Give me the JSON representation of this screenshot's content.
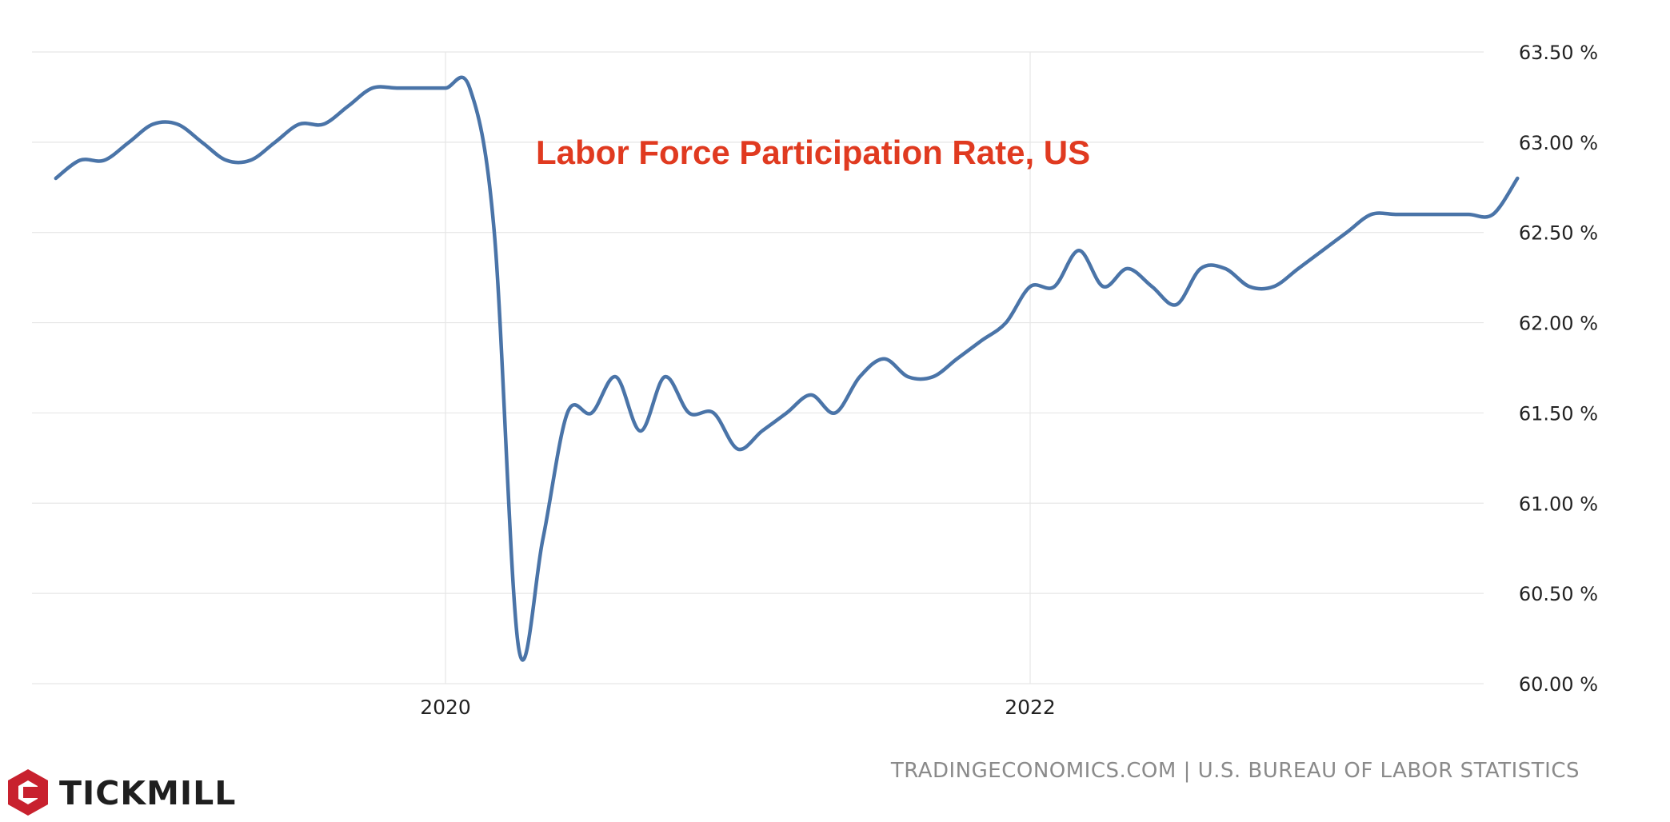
{
  "chart_data": {
    "type": "line",
    "title": "Labor Force Participation Rate, US",
    "xlabel": "",
    "ylabel": "",
    "x_tick_labels": [
      "2020",
      "2022"
    ],
    "x_tick_positions": [
      2020.0,
      2022.0
    ],
    "y_tick_labels": [
      "63.50 %",
      "63.00 %",
      "62.50 %",
      "62.00 %",
      "61.50 %",
      "61.00 %",
      "60.50 %",
      "60.00 %"
    ],
    "ylim": [
      60.0,
      63.5
    ],
    "xlim": [
      2018.6,
      2023.8
    ],
    "grid": true,
    "legend": "none",
    "series": [
      {
        "name": "Labor Force Participation Rate",
        "color": "#4a74a8",
        "x": [
          2018.667,
          2018.75,
          2018.833,
          2018.917,
          2019.0,
          2019.083,
          2019.167,
          2019.25,
          2019.333,
          2019.417,
          2019.5,
          2019.583,
          2019.667,
          2019.75,
          2019.833,
          2019.917,
          2020.0,
          2020.083,
          2020.167,
          2020.25,
          2020.333,
          2020.417,
          2020.5,
          2020.583,
          2020.667,
          2020.75,
          2020.833,
          2020.917,
          2021.0,
          2021.083,
          2021.167,
          2021.25,
          2021.333,
          2021.417,
          2021.5,
          2021.583,
          2021.667,
          2021.75,
          2021.833,
          2021.917,
          2022.0,
          2022.083,
          2022.167,
          2022.25,
          2022.333,
          2022.417,
          2022.5,
          2022.583,
          2022.667,
          2022.75,
          2022.833,
          2022.917,
          2023.0,
          2023.083,
          2023.167,
          2023.25,
          2023.333,
          2023.417,
          2023.5,
          2023.583,
          2023.667
        ],
        "values": [
          62.8,
          62.9,
          62.9,
          63.0,
          63.1,
          63.1,
          63.0,
          62.9,
          62.9,
          63.0,
          63.1,
          63.1,
          63.2,
          63.3,
          63.3,
          63.3,
          63.3,
          63.3,
          62.5,
          60.2,
          60.8,
          61.5,
          61.5,
          61.7,
          61.4,
          61.7,
          61.5,
          61.5,
          61.3,
          61.4,
          61.5,
          61.6,
          61.5,
          61.7,
          61.8,
          61.7,
          61.7,
          61.8,
          61.9,
          62.0,
          62.2,
          62.2,
          62.4,
          62.2,
          62.3,
          62.2,
          62.1,
          62.3,
          62.3,
          62.2,
          62.2,
          62.3,
          62.4,
          62.5,
          62.6,
          62.6,
          62.6,
          62.6,
          62.6,
          62.6,
          62.8
        ]
      }
    ]
  },
  "source_text": "TRADINGECONOMICS.COM | U.S. BUREAU OF LABOR STATISTICS",
  "logo": {
    "text": "TICKMILL",
    "icon": "tickmill-hexagon-icon",
    "color": "#c8212e"
  }
}
